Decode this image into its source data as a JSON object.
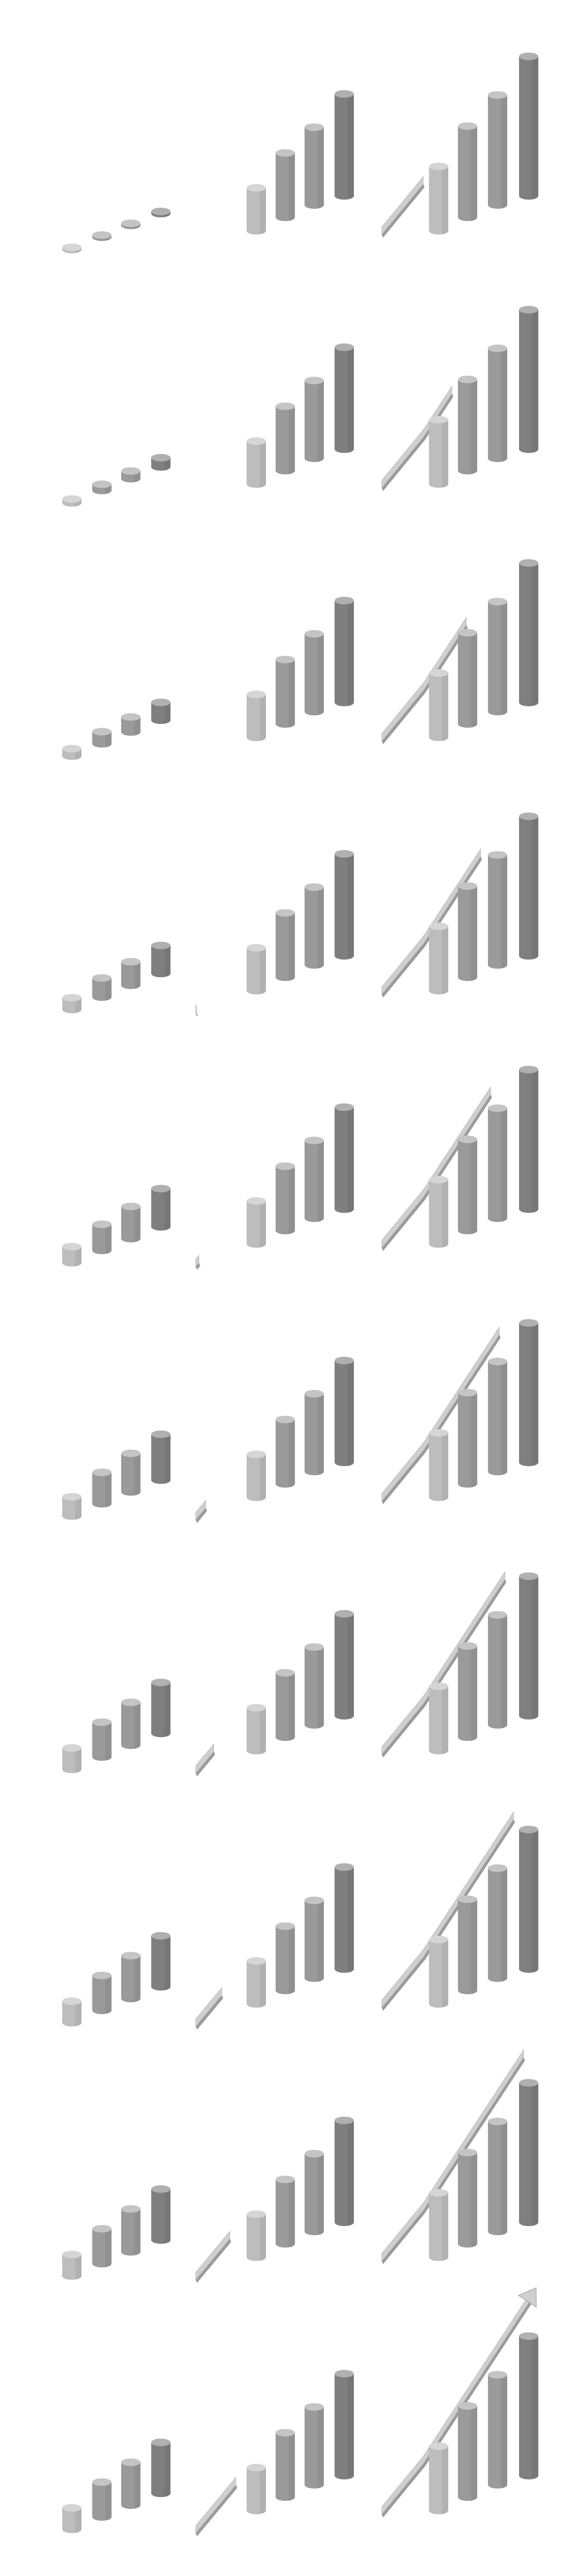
{
  "title": "",
  "frames": [
    {
      "group_a_scale": 0.02,
      "group_b_scale": 1.0,
      "group_c_scale": 1.0,
      "arrow_progress": 0.25,
      "left_arrow_progress": 0.0
    },
    {
      "group_a_scale": 0.18,
      "group_b_scale": 1.0,
      "group_c_scale": 1.0,
      "arrow_progress": 0.45,
      "left_arrow_progress": 0.0
    },
    {
      "group_a_scale": 0.35,
      "group_b_scale": 1.0,
      "group_c_scale": 1.0,
      "arrow_progress": 0.55,
      "left_arrow_progress": 0.0
    },
    {
      "group_a_scale": 0.55,
      "group_b_scale": 1.0,
      "group_c_scale": 1.0,
      "arrow_progress": 0.65,
      "left_arrow_progress": 0.02
    },
    {
      "group_a_scale": 0.75,
      "group_b_scale": 1.0,
      "group_c_scale": 1.0,
      "arrow_progress": 0.72,
      "left_arrow_progress": 0.08
    },
    {
      "group_a_scale": 0.9,
      "group_b_scale": 1.0,
      "group_c_scale": 1.0,
      "arrow_progress": 0.78,
      "left_arrow_progress": 0.25
    },
    {
      "group_a_scale": 1.0,
      "group_b_scale": 1.0,
      "group_c_scale": 1.0,
      "arrow_progress": 0.82,
      "left_arrow_progress": 0.45
    },
    {
      "group_a_scale": 1.0,
      "group_b_scale": 1.0,
      "group_c_scale": 1.0,
      "arrow_progress": 0.88,
      "left_arrow_progress": 0.65
    },
    {
      "group_a_scale": 1.0,
      "group_b_scale": 1.0,
      "group_c_scale": 1.0,
      "arrow_progress": 0.95,
      "left_arrow_progress": 0.85
    },
    {
      "group_a_scale": 1.0,
      "group_b_scale": 1.0,
      "group_c_scale": 1.0,
      "arrow_progress": 1.0,
      "left_arrow_progress": 1.0
    }
  ],
  "colors": {
    "light": "#bdbdbd",
    "mid": "#9a9a9a",
    "dark": "#7f7f7f",
    "cap_light": "#d5d5d5",
    "cap_mid": "#c4c4c4",
    "cap_dark": "#b0b0b0",
    "arrow_face": "#cfcfcf",
    "arrow_side": "#9a9a9a"
  }
}
